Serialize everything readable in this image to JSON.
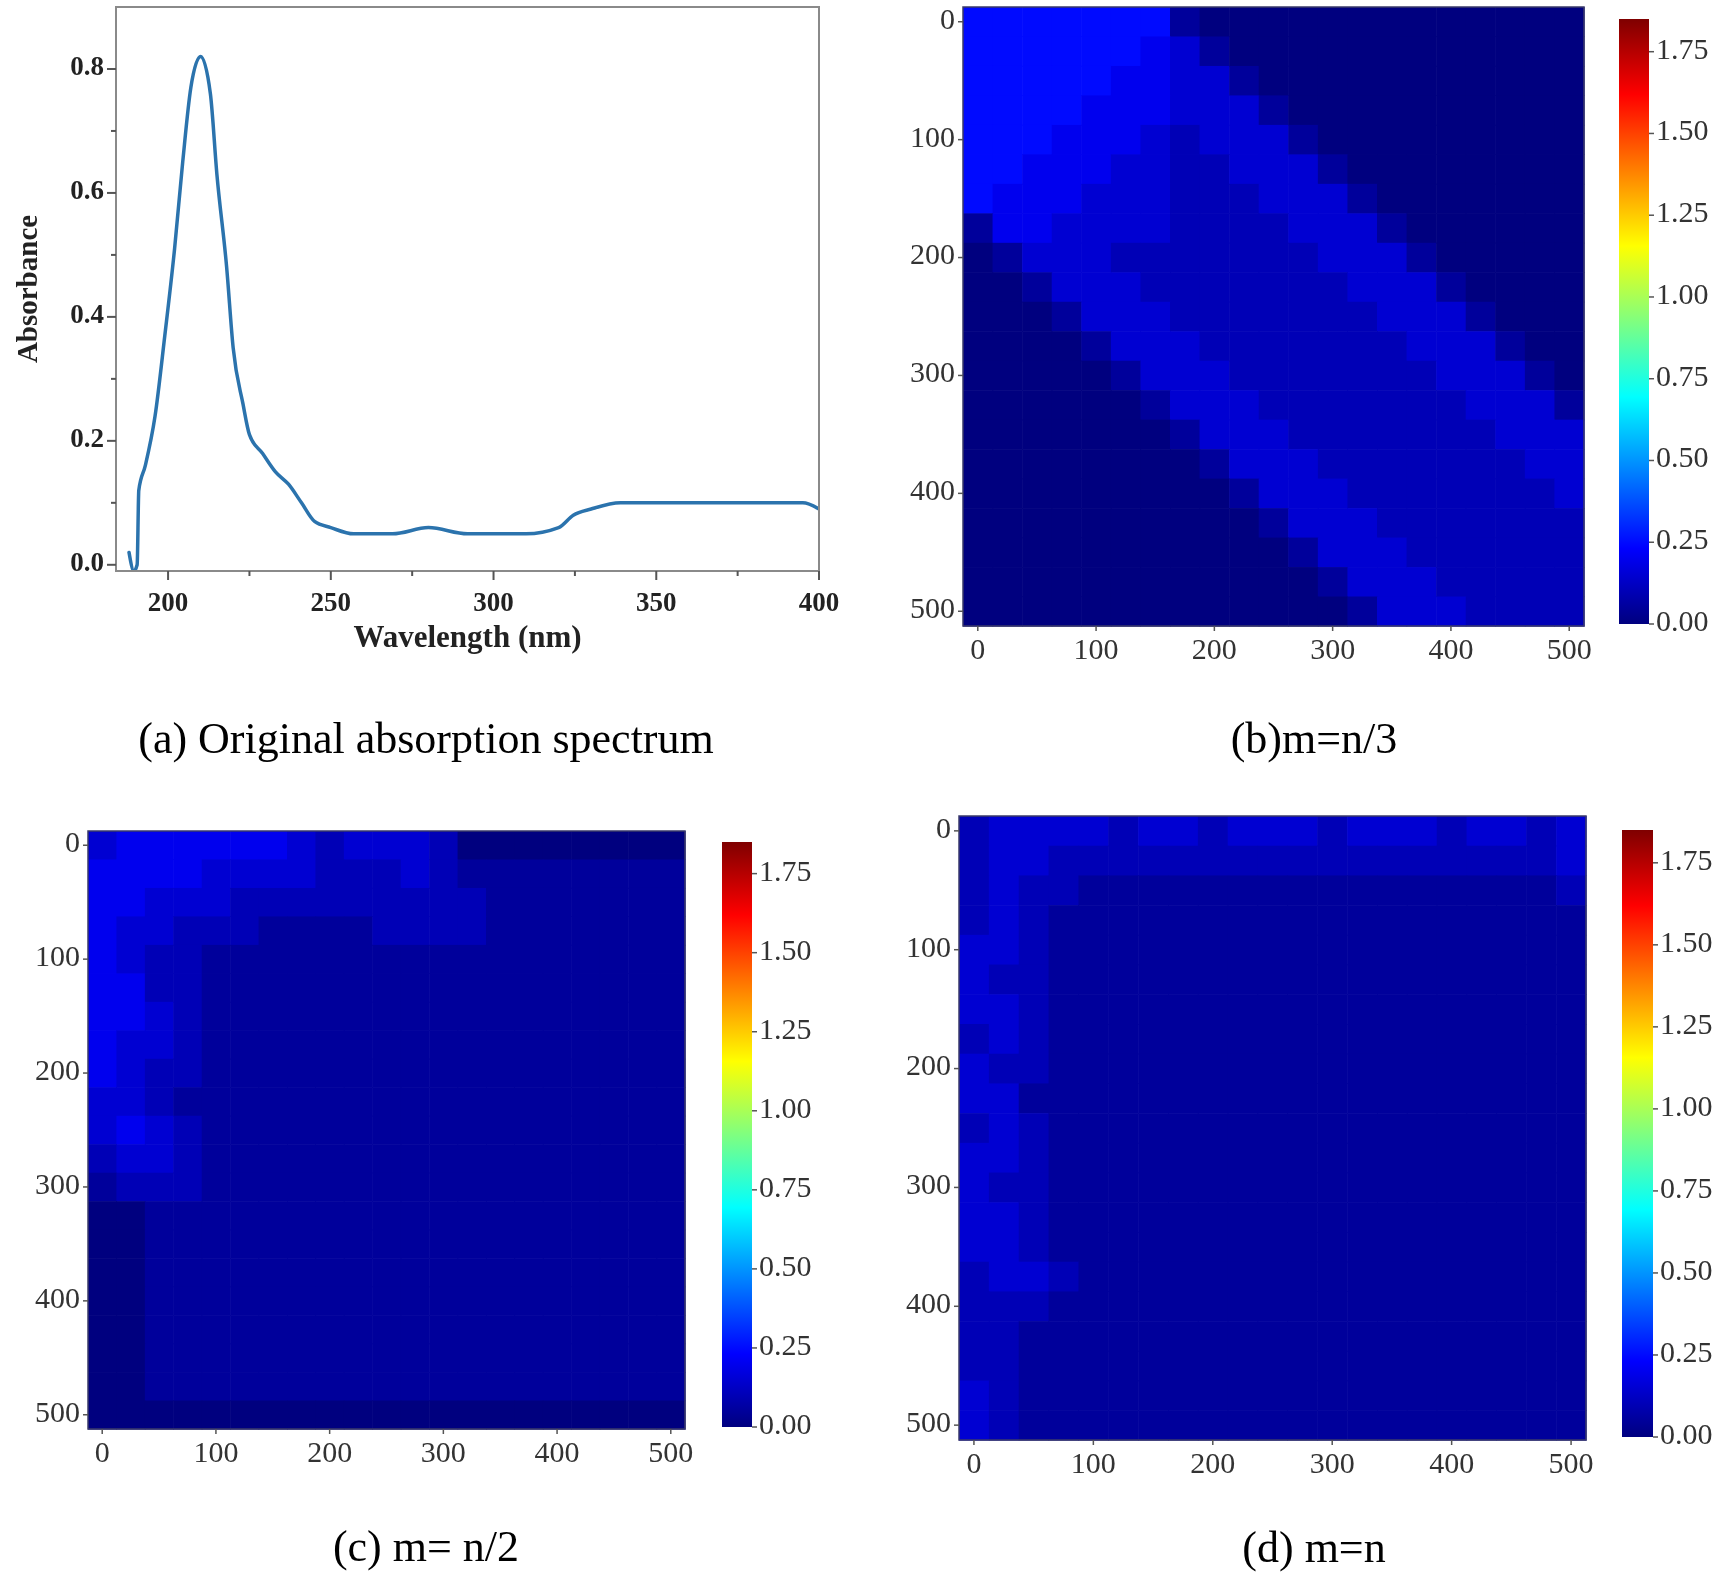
{
  "chart_data": [
    {
      "type": "line",
      "title": "(a) Original absorption spectrum",
      "xlabel": "Wavelength (nm)",
      "ylabel": "Absorbance",
      "color": "#2b73ad",
      "x": [
        188,
        189.5,
        190.5,
        191,
        193,
        196,
        199,
        202,
        204.5,
        207,
        210,
        213,
        215,
        218,
        220,
        223,
        225,
        229,
        233,
        237,
        241,
        245,
        250,
        257,
        269,
        280,
        292,
        300,
        310,
        320,
        324.5,
        330,
        339,
        349,
        365,
        379,
        389,
        395,
        400
      ],
      "values": [
        0.02,
        -0.01,
        0,
        0.12,
        0.16,
        0.24,
        0.37,
        0.51,
        0.65,
        0.77,
        0.82,
        0.76,
        0.63,
        0.48,
        0.35,
        0.26,
        0.21,
        0.18,
        0.15,
        0.13,
        0.1,
        0.07,
        0.06,
        0.05,
        0.05,
        0.06,
        0.05,
        0.05,
        0.05,
        0.06,
        0.08,
        0.09,
        0.1,
        0.1,
        0.1,
        0.1,
        0.1,
        0.1,
        0.09
      ],
      "xlim": [
        184,
        400
      ],
      "xticks": [
        200,
        {
          "value": 225,
          "label": null
        },
        250,
        {
          "value": 275,
          "label": null
        },
        300,
        {
          "value": 325,
          "label": null
        },
        350,
        {
          "value": 375,
          "label": null
        },
        400
      ],
      "ylim": [
        -0.01,
        0.9
      ],
      "yticks": [
        {
          "value": 0,
          "label": "0.0"
        },
        {
          "value": 0.1,
          "label": null
        },
        0.2,
        {
          "value": 0.3,
          "label": null
        },
        0.4,
        {
          "value": 0.5,
          "label": null
        },
        0.6,
        {
          "value": 0.7,
          "label": null
        },
        0.8
      ]
    },
    {
      "type": "heatmap",
      "title": "(b)m=n/3",
      "categories": [
        "0",
        null,
        null,
        null,
        "100",
        null,
        null,
        null,
        "200",
        null,
        null,
        null,
        "300",
        null,
        null,
        null,
        "400",
        null,
        null,
        null,
        "500"
      ],
      "y_categories": [
        "0",
        null,
        null,
        null,
        "100",
        null,
        null,
        null,
        "200",
        null,
        null,
        null,
        "300",
        null,
        null,
        null,
        "400",
        null,
        null,
        null,
        "500"
      ],
      "cells": [
        [
          0.25,
          0.25,
          0.25,
          0.25,
          0.25,
          0.25,
          0.25,
          0.05,
          0,
          0,
          0,
          0,
          0,
          0,
          0,
          0,
          0,
          0,
          0,
          0,
          0
        ],
        [
          0.25,
          0.25,
          0.25,
          0.25,
          0.25,
          0.25,
          0.2,
          0.15,
          0.05,
          0,
          0,
          0,
          0,
          0,
          0,
          0,
          0,
          0,
          0,
          0,
          0
        ],
        [
          0.25,
          0.25,
          0.25,
          0.25,
          0.25,
          0.2,
          0.2,
          0.15,
          0.15,
          0.05,
          0,
          0,
          0,
          0,
          0,
          0,
          0,
          0,
          0,
          0,
          0
        ],
        [
          0.25,
          0.25,
          0.25,
          0.25,
          0.2,
          0.2,
          0.2,
          0.15,
          0.15,
          0.15,
          0.05,
          0,
          0,
          0,
          0,
          0,
          0,
          0,
          0,
          0,
          0
        ],
        [
          0.25,
          0.25,
          0.25,
          0.2,
          0.2,
          0.2,
          0.15,
          0.1,
          0.15,
          0.15,
          0.15,
          0.05,
          0,
          0,
          0,
          0,
          0,
          0,
          0,
          0,
          0
        ],
        [
          0.25,
          0.25,
          0.2,
          0.2,
          0.2,
          0.15,
          0.15,
          0.1,
          0.1,
          0.15,
          0.15,
          0.15,
          0.05,
          0,
          0,
          0,
          0,
          0,
          0,
          0,
          0
        ],
        [
          0.25,
          0.2,
          0.2,
          0.2,
          0.15,
          0.15,
          0.15,
          0.1,
          0.1,
          0.1,
          0.15,
          0.15,
          0.15,
          0.05,
          0,
          0,
          0,
          0,
          0,
          0,
          0
        ],
        [
          0.05,
          0.2,
          0.2,
          0.15,
          0.15,
          0.15,
          0.15,
          0.1,
          0.1,
          0.1,
          0.1,
          0.15,
          0.15,
          0.15,
          0.05,
          0,
          0,
          0,
          0,
          0,
          0
        ],
        [
          0,
          0.05,
          0.15,
          0.15,
          0.15,
          0.1,
          0.1,
          0.1,
          0.1,
          0.1,
          0.1,
          0.1,
          0.15,
          0.15,
          0.15,
          0.05,
          0,
          0,
          0,
          0,
          0
        ],
        [
          0,
          0,
          0.05,
          0.15,
          0.15,
          0.15,
          0.1,
          0.1,
          0.1,
          0.1,
          0.1,
          0.1,
          0.1,
          0.15,
          0.15,
          0.15,
          0.05,
          0,
          0,
          0,
          0
        ],
        [
          0,
          0,
          0,
          0.05,
          0.15,
          0.15,
          0.15,
          0.1,
          0.1,
          0.1,
          0.1,
          0.1,
          0.1,
          0.1,
          0.15,
          0.15,
          0.15,
          0.05,
          0,
          0,
          0
        ],
        [
          0,
          0,
          0,
          0,
          0.05,
          0.15,
          0.15,
          0.15,
          0.1,
          0.1,
          0.1,
          0.1,
          0.1,
          0.1,
          0.1,
          0.15,
          0.15,
          0.15,
          0.05,
          0,
          0
        ],
        [
          0,
          0,
          0,
          0,
          0,
          0.05,
          0.15,
          0.15,
          0.15,
          0.1,
          0.1,
          0.1,
          0.1,
          0.1,
          0.1,
          0.1,
          0.15,
          0.15,
          0.15,
          0.05,
          0
        ],
        [
          0,
          0,
          0,
          0,
          0,
          0,
          0.05,
          0.15,
          0.15,
          0.15,
          0.1,
          0.1,
          0.1,
          0.1,
          0.1,
          0.1,
          0.1,
          0.15,
          0.15,
          0.15,
          0.05
        ],
        [
          0,
          0,
          0,
          0,
          0,
          0,
          0,
          0.05,
          0.15,
          0.15,
          0.15,
          0.1,
          0.1,
          0.1,
          0.1,
          0.1,
          0.1,
          0.1,
          0.15,
          0.15,
          0.15
        ],
        [
          0,
          0,
          0,
          0,
          0,
          0,
          0,
          0,
          0.05,
          0.15,
          0.15,
          0.15,
          0.1,
          0.1,
          0.1,
          0.1,
          0.1,
          0.1,
          0.1,
          0.15,
          0.15
        ],
        [
          0,
          0,
          0,
          0,
          0,
          0,
          0,
          0,
          0,
          0.05,
          0.15,
          0.15,
          0.15,
          0.1,
          0.1,
          0.1,
          0.1,
          0.1,
          0.1,
          0.1,
          0.15
        ],
        [
          0,
          0,
          0,
          0,
          0,
          0,
          0,
          0,
          0,
          0,
          0.05,
          0.15,
          0.15,
          0.15,
          0.1,
          0.1,
          0.1,
          0.1,
          0.1,
          0.1,
          0.1
        ],
        [
          0,
          0,
          0,
          0,
          0,
          0,
          0,
          0,
          0,
          0,
          0,
          0.05,
          0.15,
          0.15,
          0.15,
          0.1,
          0.1,
          0.1,
          0.1,
          0.1,
          0.1
        ],
        [
          0,
          0,
          0,
          0,
          0,
          0,
          0,
          0,
          0,
          0,
          0,
          0,
          0.05,
          0.15,
          0.15,
          0.15,
          0.1,
          0.1,
          0.1,
          0.1,
          0.1
        ],
        [
          0,
          0,
          0,
          0,
          0,
          0,
          0,
          0,
          0,
          0,
          0,
          0,
          0,
          0.05,
          0.15,
          0.15,
          0.15,
          0.1,
          0.1,
          0.1,
          0.1
        ]
      ],
      "clim": [
        0,
        1.85
      ],
      "cticks": [
        {
          "value": 0,
          "label": "0.00"
        },
        {
          "value": 0.25,
          "label": "0.25"
        },
        {
          "value": 0.5,
          "label": "0.50"
        },
        {
          "value": 0.75,
          "label": "0.75"
        },
        {
          "value": 1,
          "label": "1.00"
        },
        {
          "value": 1.25,
          "label": "1.25"
        },
        {
          "value": 1.5,
          "label": "1.50"
        },
        {
          "value": 1.75,
          "label": "1.75"
        }
      ]
    },
    {
      "type": "heatmap",
      "title": "(c) m= n/2",
      "categories": [
        "0",
        null,
        null,
        null,
        "100",
        null,
        null,
        null,
        "200",
        null,
        null,
        null,
        "300",
        null,
        null,
        null,
        "400",
        null,
        null,
        null,
        "500"
      ],
      "y_categories": [
        "0",
        null,
        null,
        null,
        "100",
        null,
        null,
        null,
        "200",
        null,
        null,
        null,
        "300",
        null,
        null,
        null,
        "400",
        null,
        null,
        null,
        "500"
      ],
      "cells": [
        [
          0.15,
          0.2,
          0.2,
          0.2,
          0.2,
          0.2,
          0.2,
          0.15,
          0.1,
          0.15,
          0.15,
          0.15,
          0.1,
          0,
          0,
          0,
          0,
          0,
          0,
          0,
          0
        ],
        [
          0.2,
          0.2,
          0.2,
          0.2,
          0.15,
          0.15,
          0.15,
          0.15,
          0.1,
          0.1,
          0.1,
          0.15,
          0.1,
          0.05,
          0.05,
          0.05,
          0.05,
          0.05,
          0.05,
          0.05,
          0.05
        ],
        [
          0.2,
          0.2,
          0.15,
          0.15,
          0.15,
          0.1,
          0.1,
          0.1,
          0.1,
          0.1,
          0.1,
          0.1,
          0.1,
          0.1,
          0.05,
          0.05,
          0.05,
          0.05,
          0.05,
          0.05,
          0.05
        ],
        [
          0.2,
          0.15,
          0.15,
          0.1,
          0.1,
          0.1,
          0.05,
          0.05,
          0.05,
          0.05,
          0.1,
          0.1,
          0.1,
          0.1,
          0.05,
          0.05,
          0.05,
          0.05,
          0.05,
          0.05,
          0.05
        ],
        [
          0.2,
          0.15,
          0.1,
          0.1,
          0.05,
          0.05,
          0.05,
          0.05,
          0.05,
          0.05,
          0.05,
          0.05,
          0.05,
          0.05,
          0.05,
          0.05,
          0.05,
          0.05,
          0.05,
          0.05,
          0.05
        ],
        [
          0.2,
          0.2,
          0.1,
          0.1,
          0.05,
          0.05,
          0.05,
          0.05,
          0.05,
          0.05,
          0.05,
          0.05,
          0.05,
          0.05,
          0.05,
          0.05,
          0.05,
          0.05,
          0.05,
          0.05,
          0.05
        ],
        [
          0.2,
          0.2,
          0.15,
          0.1,
          0.05,
          0.05,
          0.05,
          0.05,
          0.05,
          0.05,
          0.05,
          0.05,
          0.05,
          0.05,
          0.05,
          0.05,
          0.05,
          0.05,
          0.05,
          0.05,
          0.05
        ],
        [
          0.2,
          0.15,
          0.15,
          0.1,
          0.05,
          0.05,
          0.05,
          0.05,
          0.05,
          0.05,
          0.05,
          0.05,
          0.05,
          0.05,
          0.05,
          0.05,
          0.05,
          0.05,
          0.05,
          0.05,
          0.05
        ],
        [
          0.2,
          0.15,
          0.1,
          0.1,
          0.05,
          0.05,
          0.05,
          0.05,
          0.05,
          0.05,
          0.05,
          0.05,
          0.05,
          0.05,
          0.05,
          0.05,
          0.05,
          0.05,
          0.05,
          0.05,
          0.05
        ],
        [
          0.15,
          0.15,
          0.1,
          0.05,
          0.05,
          0.05,
          0.05,
          0.05,
          0.05,
          0.05,
          0.05,
          0.05,
          0.05,
          0.05,
          0.05,
          0.05,
          0.05,
          0.05,
          0.05,
          0.05,
          0.05
        ],
        [
          0.15,
          0.2,
          0.15,
          0.1,
          0.05,
          0.05,
          0.05,
          0.05,
          0.05,
          0.05,
          0.05,
          0.05,
          0.05,
          0.05,
          0.05,
          0.05,
          0.05,
          0.05,
          0.05,
          0.05,
          0.05
        ],
        [
          0.1,
          0.15,
          0.15,
          0.1,
          0.05,
          0.05,
          0.05,
          0.05,
          0.05,
          0.05,
          0.05,
          0.05,
          0.05,
          0.05,
          0.05,
          0.05,
          0.05,
          0.05,
          0.05,
          0.05,
          0.05
        ],
        [
          0.05,
          0.1,
          0.1,
          0.1,
          0.05,
          0.05,
          0.05,
          0.05,
          0.05,
          0.05,
          0.05,
          0.05,
          0.05,
          0.05,
          0.05,
          0.05,
          0.05,
          0.05,
          0.05,
          0.05,
          0.05
        ],
        [
          0,
          0,
          0.05,
          0.05,
          0.05,
          0.05,
          0.05,
          0.05,
          0.05,
          0.05,
          0.05,
          0.05,
          0.05,
          0.05,
          0.05,
          0.05,
          0.05,
          0.05,
          0.05,
          0.05,
          0.05
        ],
        [
          0,
          0,
          0.05,
          0.05,
          0.05,
          0.05,
          0.05,
          0.05,
          0.05,
          0.05,
          0.05,
          0.05,
          0.05,
          0.05,
          0.05,
          0.05,
          0.05,
          0.05,
          0.05,
          0.05,
          0.05
        ],
        [
          0,
          0,
          0.05,
          0.05,
          0.05,
          0.05,
          0.05,
          0.05,
          0.05,
          0.05,
          0.05,
          0.05,
          0.05,
          0.05,
          0.05,
          0.05,
          0.05,
          0.05,
          0.05,
          0.05,
          0.05
        ],
        [
          0,
          0,
          0.05,
          0.05,
          0.05,
          0.05,
          0.05,
          0.05,
          0.05,
          0.05,
          0.05,
          0.05,
          0.05,
          0.05,
          0.05,
          0.05,
          0.05,
          0.05,
          0.05,
          0.05,
          0.05
        ],
        [
          0,
          0,
          0.05,
          0.05,
          0.05,
          0.05,
          0.05,
          0.05,
          0.05,
          0.05,
          0.05,
          0.05,
          0.05,
          0.05,
          0.05,
          0.05,
          0.05,
          0.05,
          0.05,
          0.05,
          0.05
        ],
        [
          0,
          0,
          0.05,
          0.05,
          0.05,
          0.05,
          0.05,
          0.05,
          0.05,
          0.05,
          0.05,
          0.05,
          0.05,
          0.05,
          0.05,
          0.05,
          0.05,
          0.05,
          0.05,
          0.05,
          0.05
        ],
        [
          0,
          0,
          0.05,
          0.05,
          0.05,
          0.05,
          0.05,
          0.05,
          0.05,
          0.05,
          0.05,
          0.05,
          0.05,
          0.05,
          0.05,
          0.05,
          0.05,
          0.05,
          0.05,
          0.05,
          0.05
        ],
        [
          0,
          0,
          0,
          0,
          0,
          0,
          0,
          0,
          0,
          0,
          0,
          0,
          0,
          0,
          0,
          0,
          0,
          0,
          0,
          0,
          0
        ]
      ],
      "clim": [
        0,
        1.85
      ],
      "cticks": [
        {
          "value": 0,
          "label": "0.00"
        },
        {
          "value": 0.25,
          "label": "0.25"
        },
        {
          "value": 0.5,
          "label": "0.50"
        },
        {
          "value": 0.75,
          "label": "0.75"
        },
        {
          "value": 1,
          "label": "1.00"
        },
        {
          "value": 1.25,
          "label": "1.25"
        },
        {
          "value": 1.5,
          "label": "1.50"
        },
        {
          "value": 1.75,
          "label": "1.75"
        }
      ]
    },
    {
      "type": "heatmap",
      "title": "(d) m=n",
      "categories": [
        "0",
        null,
        null,
        null,
        "100",
        null,
        null,
        null,
        "200",
        null,
        null,
        null,
        "300",
        null,
        null,
        null,
        "400",
        null,
        null,
        null,
        "500"
      ],
      "y_categories": [
        "0",
        null,
        null,
        null,
        "100",
        null,
        null,
        null,
        "200",
        null,
        null,
        null,
        "300",
        null,
        null,
        null,
        "400",
        null,
        null,
        null,
        "500"
      ],
      "cells": [
        [
          0.1,
          0.15,
          0.15,
          0.15,
          0.15,
          0.1,
          0.15,
          0.15,
          0.1,
          0.15,
          0.15,
          0.15,
          0.1,
          0.15,
          0.15,
          0.15,
          0.1,
          0.15,
          0.15,
          0.1,
          0.15
        ],
        [
          0.1,
          0.15,
          0.15,
          0.1,
          0.1,
          0.1,
          0.1,
          0.1,
          0.1,
          0.1,
          0.1,
          0.1,
          0.1,
          0.1,
          0.1,
          0.1,
          0.1,
          0.1,
          0.1,
          0.1,
          0.15
        ],
        [
          0.1,
          0.15,
          0.1,
          0.1,
          0.05,
          0.05,
          0.05,
          0.05,
          0.05,
          0.05,
          0.05,
          0.05,
          0.05,
          0.05,
          0.05,
          0.05,
          0.05,
          0.05,
          0.05,
          0.05,
          0.1
        ],
        [
          0.1,
          0.15,
          0.1,
          0.05,
          0.05,
          0.05,
          0.05,
          0.05,
          0.05,
          0.05,
          0.05,
          0.05,
          0.05,
          0.05,
          0.05,
          0.05,
          0.05,
          0.05,
          0.05,
          0.05,
          0.05
        ],
        [
          0.15,
          0.15,
          0.1,
          0.05,
          0.05,
          0.05,
          0.05,
          0.05,
          0.05,
          0.05,
          0.05,
          0.05,
          0.05,
          0.05,
          0.05,
          0.05,
          0.05,
          0.05,
          0.05,
          0.05,
          0.05
        ],
        [
          0.15,
          0.1,
          0.1,
          0.05,
          0.05,
          0.05,
          0.05,
          0.05,
          0.05,
          0.05,
          0.05,
          0.05,
          0.05,
          0.05,
          0.05,
          0.05,
          0.05,
          0.05,
          0.05,
          0.05,
          0.05
        ],
        [
          0.15,
          0.15,
          0.1,
          0.05,
          0.05,
          0.05,
          0.05,
          0.05,
          0.05,
          0.05,
          0.05,
          0.05,
          0.05,
          0.05,
          0.05,
          0.05,
          0.05,
          0.05,
          0.05,
          0.05,
          0.05
        ],
        [
          0.1,
          0.15,
          0.1,
          0.05,
          0.05,
          0.05,
          0.05,
          0.05,
          0.05,
          0.05,
          0.05,
          0.05,
          0.05,
          0.05,
          0.05,
          0.05,
          0.05,
          0.05,
          0.05,
          0.05,
          0.05
        ],
        [
          0.15,
          0.1,
          0.1,
          0.05,
          0.05,
          0.05,
          0.05,
          0.05,
          0.05,
          0.05,
          0.05,
          0.05,
          0.05,
          0.05,
          0.05,
          0.05,
          0.05,
          0.05,
          0.05,
          0.05,
          0.05
        ],
        [
          0.15,
          0.15,
          0.05,
          0.05,
          0.05,
          0.05,
          0.05,
          0.05,
          0.05,
          0.05,
          0.05,
          0.05,
          0.05,
          0.05,
          0.05,
          0.05,
          0.05,
          0.05,
          0.05,
          0.05,
          0.05
        ],
        [
          0.1,
          0.15,
          0.1,
          0.05,
          0.05,
          0.05,
          0.05,
          0.05,
          0.05,
          0.05,
          0.05,
          0.05,
          0.05,
          0.05,
          0.05,
          0.05,
          0.05,
          0.05,
          0.05,
          0.05,
          0.05
        ],
        [
          0.15,
          0.15,
          0.1,
          0.05,
          0.05,
          0.05,
          0.05,
          0.05,
          0.05,
          0.05,
          0.05,
          0.05,
          0.05,
          0.05,
          0.05,
          0.05,
          0.05,
          0.05,
          0.05,
          0.05,
          0.05
        ],
        [
          0.15,
          0.1,
          0.1,
          0.05,
          0.05,
          0.05,
          0.05,
          0.05,
          0.05,
          0.05,
          0.05,
          0.05,
          0.05,
          0.05,
          0.05,
          0.05,
          0.05,
          0.05,
          0.05,
          0.05,
          0.05
        ],
        [
          0.15,
          0.15,
          0.1,
          0.05,
          0.05,
          0.05,
          0.05,
          0.05,
          0.05,
          0.05,
          0.05,
          0.05,
          0.05,
          0.05,
          0.05,
          0.05,
          0.05,
          0.05,
          0.05,
          0.05,
          0.05
        ],
        [
          0.15,
          0.15,
          0.1,
          0.05,
          0.05,
          0.05,
          0.05,
          0.05,
          0.05,
          0.05,
          0.05,
          0.05,
          0.05,
          0.05,
          0.05,
          0.05,
          0.05,
          0.05,
          0.05,
          0.05,
          0.05
        ],
        [
          0.1,
          0.15,
          0.15,
          0.1,
          0.05,
          0.05,
          0.05,
          0.05,
          0.05,
          0.05,
          0.05,
          0.05,
          0.05,
          0.05,
          0.05,
          0.05,
          0.05,
          0.05,
          0.05,
          0.05,
          0.05
        ],
        [
          0.1,
          0.1,
          0.1,
          0.05,
          0.05,
          0.05,
          0.05,
          0.05,
          0.05,
          0.05,
          0.05,
          0.05,
          0.05,
          0.05,
          0.05,
          0.05,
          0.05,
          0.05,
          0.05,
          0.05,
          0.05
        ],
        [
          0.1,
          0.1,
          0.05,
          0.05,
          0.05,
          0.05,
          0.05,
          0.05,
          0.05,
          0.05,
          0.05,
          0.05,
          0.05,
          0.05,
          0.05,
          0.05,
          0.05,
          0.05,
          0.05,
          0.05,
          0.05
        ],
        [
          0.1,
          0.1,
          0.05,
          0.05,
          0.05,
          0.05,
          0.05,
          0.05,
          0.05,
          0.05,
          0.05,
          0.05,
          0.05,
          0.05,
          0.05,
          0.05,
          0.05,
          0.05,
          0.05,
          0.05,
          0.05
        ],
        [
          0.15,
          0.1,
          0.05,
          0.05,
          0.05,
          0.05,
          0.05,
          0.05,
          0.05,
          0.05,
          0.05,
          0.05,
          0.05,
          0.05,
          0.05,
          0.05,
          0.05,
          0.05,
          0.05,
          0.05,
          0.05
        ],
        [
          0.15,
          0.1,
          0.05,
          0.05,
          0.05,
          0.05,
          0.05,
          0.05,
          0.05,
          0.05,
          0.05,
          0.05,
          0.05,
          0.05,
          0.05,
          0.05,
          0.05,
          0.05,
          0.05,
          0.05,
          0.05
        ]
      ],
      "clim": [
        0,
        1.85
      ],
      "cticks": [
        {
          "value": 0,
          "label": "0.00"
        },
        {
          "value": 0.25,
          "label": "0.25"
        },
        {
          "value": 0.5,
          "label": "0.50"
        },
        {
          "value": 0.75,
          "label": "0.75"
        },
        {
          "value": 1,
          "label": "1.00"
        },
        {
          "value": 1.25,
          "label": "1.25"
        },
        {
          "value": 1.5,
          "label": "1.50"
        },
        {
          "value": 1.75,
          "label": "1.75"
        }
      ]
    }
  ]
}
